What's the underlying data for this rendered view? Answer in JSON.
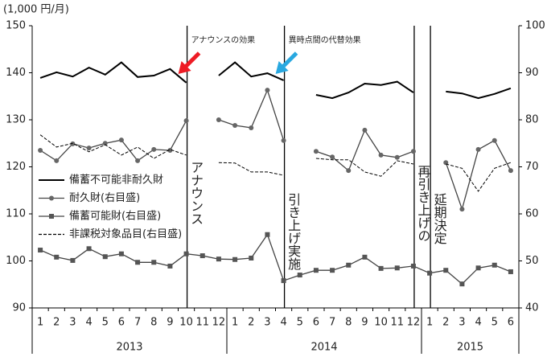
{
  "chart_data": {
    "type": "line",
    "unit_label": "(1,000 円/月)",
    "categories": [
      "1",
      "2",
      "3",
      "4",
      "5",
      "6",
      "7",
      "8",
      "9",
      "10",
      "11",
      "12",
      "1",
      "2",
      "3",
      "4",
      "5",
      "6",
      "7",
      "8",
      "9",
      "10",
      "11",
      "12",
      "1",
      "2",
      "3",
      "4",
      "5",
      "6"
    ],
    "x_groups": [
      {
        "label": "2013",
        "start": 0,
        "end": 11
      },
      {
        "label": "2014",
        "start": 12,
        "end": 23
      },
      {
        "label": "2015",
        "start": 24,
        "end": 29
      }
    ],
    "ylim": [
      90,
      150
    ],
    "yticks": [
      90,
      100,
      110,
      120,
      130,
      140,
      150
    ],
    "y2lim": [
      40,
      100
    ],
    "y2ticks": [
      40,
      50,
      60,
      70,
      80,
      90,
      100
    ],
    "legend": "lower left",
    "series": [
      {
        "name": "備蓄不可能非耐久財",
        "color": "#000000",
        "style": "solid-thick",
        "values": [
          138.9,
          140.1,
          139.2,
          141.1,
          139.6,
          142.2,
          139.1,
          139.4,
          140.8,
          137.9,
          null,
          139.4,
          142.2,
          139.2,
          139.9,
          138.4,
          null,
          135.3,
          134.6,
          135.8,
          137.7,
          137.4,
          138.1,
          135.8,
          null,
          136.0,
          135.6,
          134.6,
          135.5,
          136.7
        ]
      },
      {
        "name": "耐久財(右目盛)",
        "color": "#444444",
        "style": "circle",
        "axis": "y2",
        "values": [
          73.5,
          71.3,
          74.9,
          74.0,
          75.0,
          75.7,
          71.3,
          73.7,
          73.5,
          79.8,
          null,
          80.0,
          78.8,
          78.3,
          86.3,
          75.6,
          null,
          73.3,
          72.1,
          69.2,
          77.8,
          72.5,
          72.0,
          73.3,
          null,
          70.9,
          61.0,
          73.7,
          75.6,
          69.2
        ]
      },
      {
        "name": "備蓄可能財(右目盛)",
        "color": "#444444",
        "style": "square",
        "values": [
          102.3,
          100.8,
          100.1,
          102.6,
          100.9,
          101.5,
          99.7,
          99.7,
          98.9,
          101.5,
          101.1,
          100.4,
          100.3,
          100.6,
          105.6,
          95.8,
          97.0,
          98.0,
          98.0,
          99.1,
          100.8,
          98.4,
          98.5,
          98.9,
          97.4,
          98.0,
          95.1,
          98.5,
          99.1,
          97.7
        ]
      },
      {
        "name": "非課税対象品目(右目盛)",
        "color": "#000000",
        "style": "dashed",
        "axis": "y2",
        "values": [
          76.8,
          74.2,
          75.0,
          73.2,
          74.7,
          72.5,
          74.2,
          71.8,
          73.7,
          72.5,
          null,
          70.9,
          70.8,
          68.9,
          68.9,
          68.2,
          null,
          71.8,
          71.5,
          71.5,
          68.9,
          68.0,
          71.3,
          70.6,
          null,
          70.6,
          69.7,
          64.8,
          69.7,
          70.9
        ]
      }
    ],
    "events": [
      {
        "index": 9,
        "text": "アナウンス"
      },
      {
        "index": 15,
        "text": "引き上げ実施"
      },
      {
        "index": 23,
        "text": "再引き上げの"
      },
      {
        "index": 24,
        "text": "延期決定"
      }
    ],
    "callouts": [
      {
        "index": 9,
        "text": "アナウンスの効果",
        "color": "#ee1c25"
      },
      {
        "index": 15,
        "text": "異時点間の代替効果",
        "color": "#29a8e0"
      }
    ]
  }
}
